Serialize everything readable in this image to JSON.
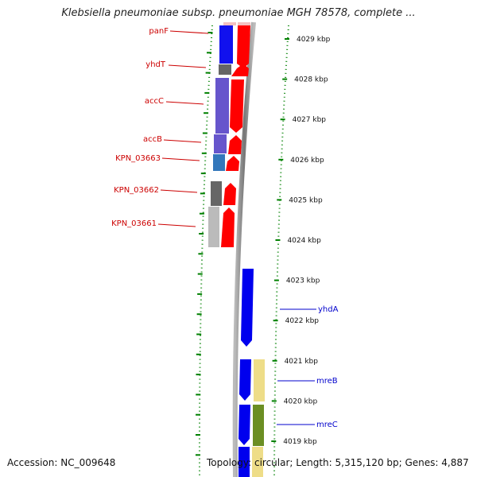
{
  "title": "Klebsiella pneumoniae subsp. pneumoniae MGH 78578, complete ...",
  "footer": {
    "accession": "Accession: NC_009648",
    "summary": "Topology: circular; Length: 5,315,120 bp; Genes: 4,887"
  },
  "scale_ticks": [
    "4029 kbp",
    "4028 kbp",
    "4027 kbp",
    "4026 kbp",
    "4025 kbp",
    "4024 kbp",
    "4023 kbp",
    "4022 kbp",
    "4021 kbp",
    "4020 kbp",
    "4019 kbp"
  ],
  "genes_reverse": [
    {
      "name": "panF",
      "color": "#cc0000"
    },
    {
      "name": "yhdT",
      "color": "#cc0000"
    },
    {
      "name": "accC",
      "color": "#cc0000"
    },
    {
      "name": "accB",
      "color": "#cc0000"
    },
    {
      "name": "KPN_03663",
      "color": "#cc0000"
    },
    {
      "name": "KPN_03662",
      "color": "#cc0000"
    },
    {
      "name": "KPN_03661",
      "color": "#cc0000"
    }
  ],
  "genes_forward": [
    {
      "name": "yhdA",
      "color": "#0000cc"
    },
    {
      "name": "mreB",
      "color": "#0000cc"
    },
    {
      "name": "mreC",
      "color": "#0000cc"
    }
  ],
  "colors": {
    "reverse_strand": "#ff0000",
    "forward_strand": "#0000ff",
    "backbone": "#888888",
    "tick": "#008000"
  }
}
